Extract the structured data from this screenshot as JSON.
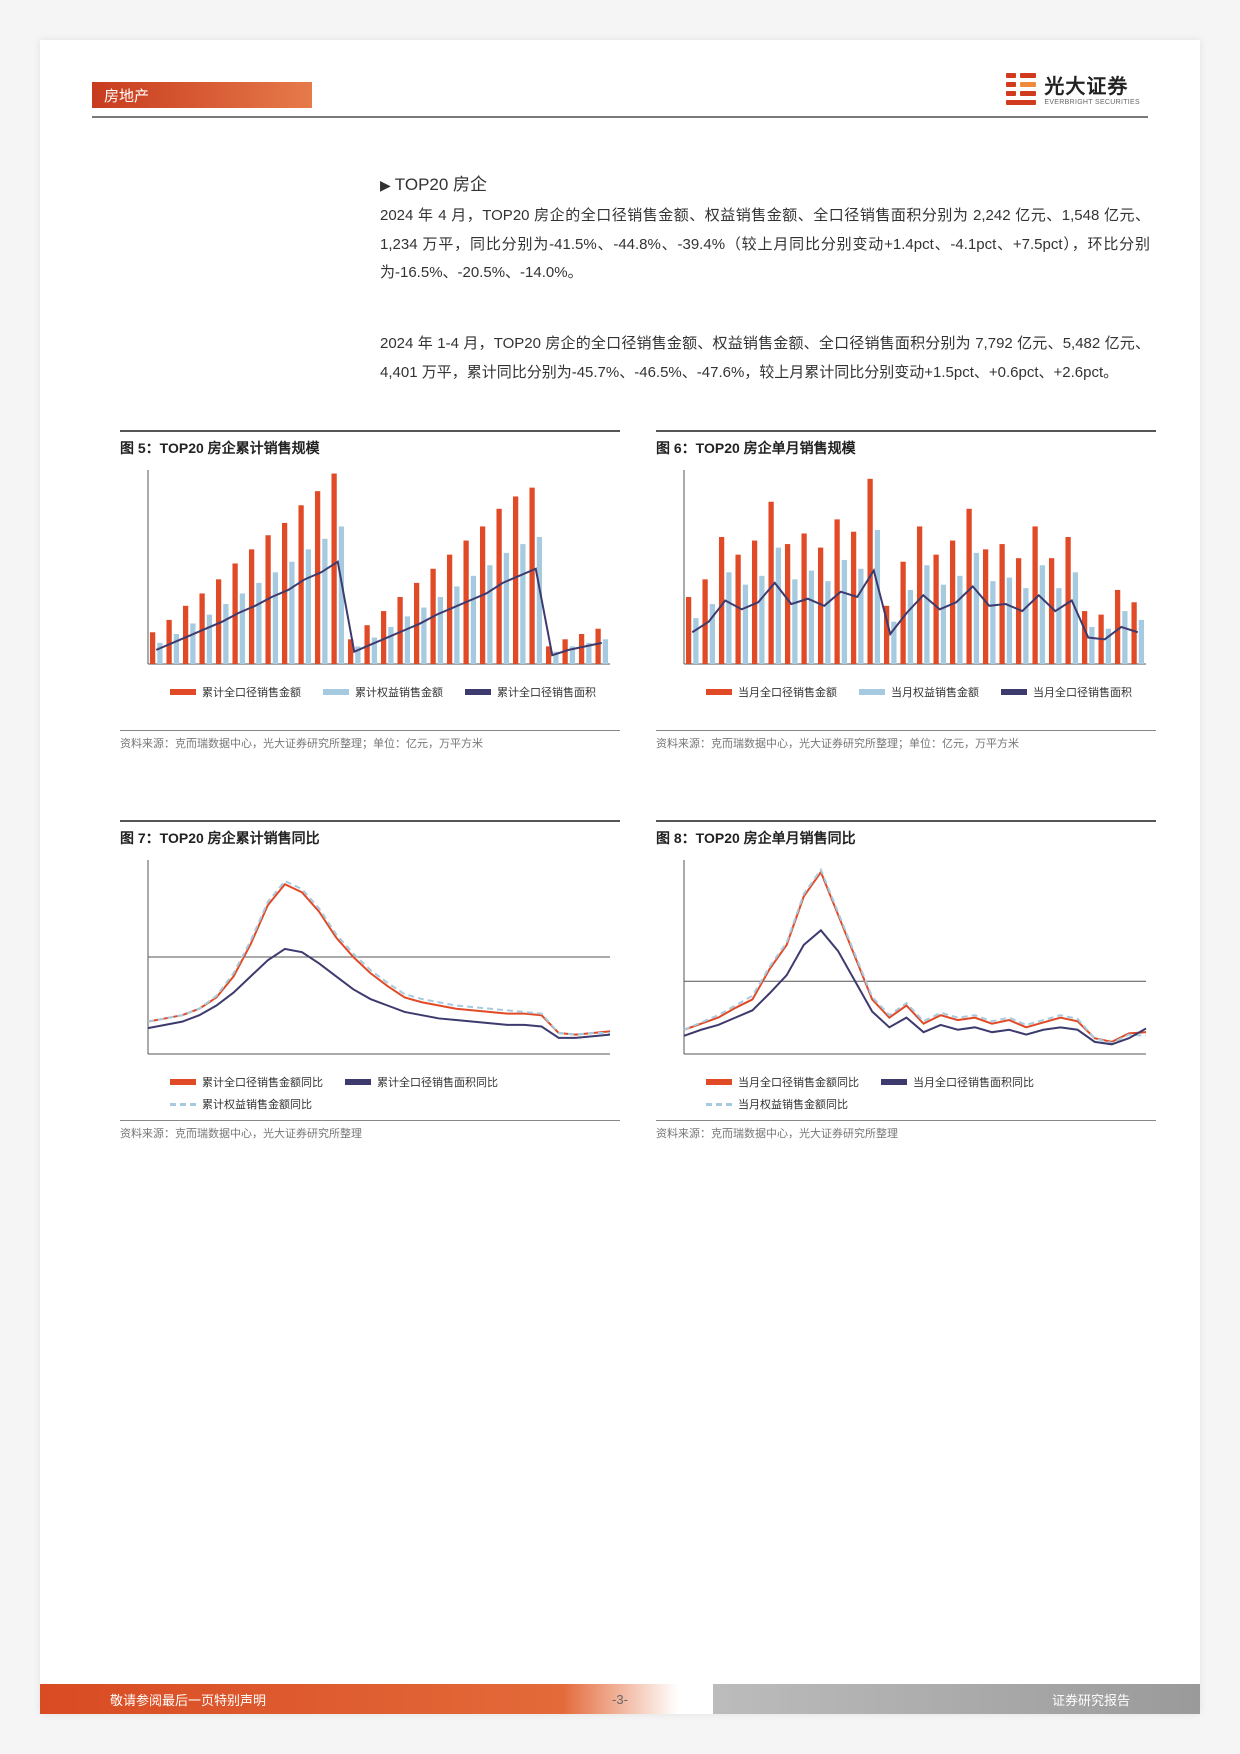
{
  "header": {
    "category": "房地产"
  },
  "logo": {
    "cn": "光大证券",
    "en": "EVERBRIGHT SECURITIES"
  },
  "section_title": "TOP20 房企",
  "para1": "2024 年 4 月，TOP20 房企的全口径销售金额、权益销售金额、全口径销售面积分别为 2,242 亿元、1,548 亿元、1,234 万平，同比分别为-41.5%、-44.8%、-39.4%（较上月同比分别变动+1.4pct、-4.1pct、+7.5pct），环比分别为-16.5%、-20.5%、-14.0%。",
  "para2": "2024 年 1-4 月，TOP20 房企的全口径销售金额、权益销售金额、全口径销售面积分别为 7,792 亿元、5,482 亿元、4,401 万平，累计同比分别为-45.7%、-46.5%、-47.6%，较上月累计同比分别变动+1.5pct、+0.6pct、+2.6pct。",
  "figures": {
    "fig5": {
      "title": "图 5：TOP20 房企累计销售规模",
      "type": "bar+line",
      "colors": {
        "bar1": "#e04a26",
        "bar2": "#a6cbe0",
        "line": "#3d3a6e",
        "grid": "#ffffff",
        "axis": "#555555"
      },
      "legend": [
        "累计全口径销售金额",
        "累计权益销售金额",
        "累计全口径销售面积"
      ],
      "bars1": [
        18,
        25,
        33,
        40,
        48,
        57,
        65,
        73,
        80,
        90,
        98,
        108,
        14,
        22,
        30,
        38,
        46,
        54,
        62,
        70,
        78,
        88,
        95,
        100,
        10,
        14,
        17,
        20
      ],
      "bars2": [
        12,
        17,
        23,
        28,
        34,
        40,
        46,
        52,
        58,
        65,
        71,
        78,
        10,
        15,
        21,
        27,
        32,
        38,
        44,
        50,
        56,
        63,
        68,
        72,
        7,
        10,
        12,
        14
      ],
      "line": [
        8,
        12,
        16,
        20,
        24,
        29,
        33,
        38,
        42,
        48,
        52,
        58,
        7,
        11,
        15,
        19,
        23,
        28,
        32,
        36,
        40,
        46,
        50,
        54,
        5,
        8,
        10,
        12
      ],
      "ylim": [
        0,
        110
      ],
      "source": "资料来源：克而瑞数据中心，光大证券研究所整理；单位：亿元，万平方米"
    },
    "fig6": {
      "title": "图 6：TOP20 房企单月销售规模",
      "type": "bar+line",
      "colors": {
        "bar1": "#e04a26",
        "bar2": "#a6cbe0",
        "line": "#3d3a6e",
        "grid": "#ffffff",
        "axis": "#555555"
      },
      "legend": [
        "当月全口径销售金额",
        "当月权益销售金额",
        "当月全口径销售面积"
      ],
      "bars1": [
        38,
        48,
        72,
        62,
        70,
        92,
        68,
        74,
        66,
        82,
        75,
        105,
        33,
        58,
        78,
        62,
        70,
        88,
        65,
        68,
        60,
        78,
        60,
        72,
        30,
        28,
        42,
        35
      ],
      "bars2": [
        26,
        34,
        52,
        45,
        50,
        66,
        48,
        53,
        47,
        59,
        54,
        76,
        24,
        42,
        56,
        45,
        50,
        63,
        47,
        49,
        43,
        56,
        43,
        52,
        21,
        20,
        30,
        25
      ],
      "line": [
        18,
        24,
        36,
        31,
        35,
        46,
        34,
        37,
        33,
        41,
        38,
        53,
        17,
        29,
        39,
        31,
        35,
        44,
        33,
        34,
        30,
        39,
        30,
        36,
        15,
        14,
        21,
        18
      ],
      "ylim": [
        0,
        110
      ],
      "source": "资料来源：克而瑞数据中心，光大证券研究所整理；单位：亿元，万平方米"
    },
    "fig7": {
      "title": "图 7：TOP20 房企累计销售同比",
      "type": "line3",
      "colors": {
        "l1": "#e04a26",
        "l2": "#3d3a6e",
        "l3": "#a6cbe0",
        "axis": "#555555"
      },
      "legend": [
        "累计全口径销售金额同比",
        "累计全口径销售面积同比",
        "累计权益销售金额同比"
      ],
      "l1": [
        -40,
        -38,
        -36,
        -32,
        -25,
        -12,
        8,
        32,
        45,
        40,
        28,
        12,
        0,
        -10,
        -18,
        -25,
        -28,
        -30,
        -32,
        -33,
        -34,
        -35,
        -35,
        -36,
        -47,
        -48,
        -47,
        -46
      ],
      "l2": [
        -44,
        -42,
        -40,
        -36,
        -30,
        -22,
        -12,
        -2,
        5,
        3,
        -4,
        -12,
        -20,
        -26,
        -30,
        -34,
        -36,
        -38,
        -39,
        -40,
        -41,
        -42,
        -42,
        -43,
        -50,
        -50,
        -49,
        -48
      ],
      "l3": [
        -40,
        -38,
        -36,
        -32,
        -24,
        -10,
        10,
        34,
        47,
        42,
        30,
        14,
        2,
        -8,
        -16,
        -23,
        -26,
        -28,
        -30,
        -31,
        -32,
        -33,
        -34,
        -35,
        -47,
        -48,
        -47,
        -47
      ],
      "ylim": [
        -60,
        60
      ],
      "source": "资料来源：克而瑞数据中心，光大证券研究所整理"
    },
    "fig8": {
      "title": "图 8：TOP20 房企单月销售同比",
      "type": "line3",
      "colors": {
        "l1": "#e04a26",
        "l2": "#3d3a6e",
        "l3": "#a6cbe0",
        "axis": "#555555"
      },
      "legend": [
        "当月全口径销售金额同比",
        "当月全口径销售面积同比",
        "当月权益销售金额同比"
      ],
      "l1": [
        -40,
        -35,
        -30,
        -22,
        -15,
        10,
        30,
        70,
        90,
        55,
        20,
        -15,
        -30,
        -20,
        -35,
        -28,
        -32,
        -30,
        -35,
        -32,
        -38,
        -34,
        -30,
        -33,
        -47,
        -50,
        -43,
        -42
      ],
      "l2": [
        -45,
        -40,
        -36,
        -30,
        -24,
        -10,
        5,
        30,
        42,
        25,
        0,
        -25,
        -38,
        -30,
        -42,
        -36,
        -40,
        -38,
        -42,
        -40,
        -44,
        -40,
        -38,
        -40,
        -50,
        -52,
        -47,
        -39
      ],
      "l3": [
        -40,
        -34,
        -28,
        -20,
        -12,
        12,
        32,
        72,
        92,
        57,
        22,
        -13,
        -28,
        -18,
        -33,
        -26,
        -30,
        -28,
        -33,
        -30,
        -36,
        -32,
        -28,
        -31,
        -47,
        -51,
        -44,
        -45
      ],
      "ylim": [
        -60,
        100
      ],
      "source": "资料来源：克而瑞数据中心，光大证券研究所整理"
    }
  },
  "footer": {
    "left": "敬请参阅最后一页特别声明",
    "mid": "-3-",
    "right": "证券研究报告"
  }
}
